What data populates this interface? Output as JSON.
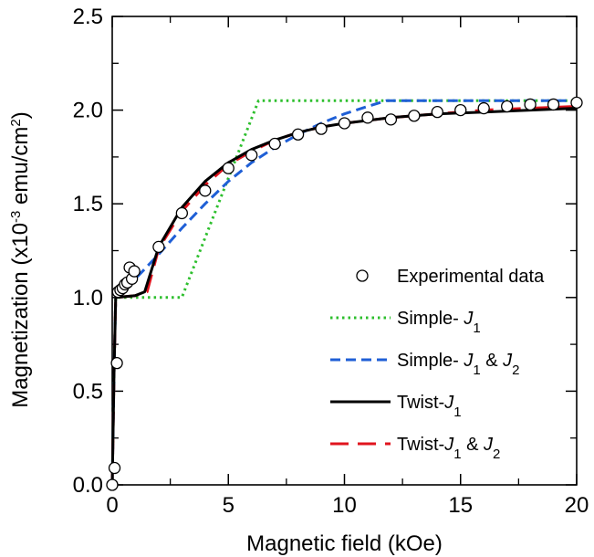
{
  "chart_data": {
    "type": "line",
    "xlabel": "Magnetic field (kOe)",
    "ylabel": {
      "prefix": "Magnetization (x10",
      "exp": "-3",
      "unit": " emu/cm",
      "unit_exp": "2",
      "suffix": ")"
    },
    "xlim": [
      0,
      20
    ],
    "ylim": [
      0,
      2.5
    ],
    "xticks": [
      "0",
      "5",
      "10",
      "15",
      "20"
    ],
    "yticks": [
      "0.0",
      "0.5",
      "1.0",
      "1.5",
      "2.0",
      "2.5"
    ],
    "grid": false,
    "legend_position": "bottom-right",
    "series": [
      {
        "name": "Experimental data",
        "legend": {
          "main": "Experimental data",
          "parts": []
        },
        "style": "markers",
        "color": "#000000",
        "x": [
          0.0,
          0.1,
          0.2,
          0.25,
          0.35,
          0.45,
          0.55,
          0.65,
          0.75,
          0.85,
          0.95,
          2.0,
          3.0,
          4.0,
          5.0,
          6.0,
          7.0,
          8.0,
          9.0,
          10.0,
          11.0,
          12.0,
          13.0,
          14.0,
          15.0,
          16.0,
          17.0,
          18.0,
          19.0,
          20.0
        ],
        "y": [
          0.0,
          0.09,
          0.65,
          1.03,
          1.04,
          1.05,
          1.07,
          1.08,
          1.16,
          1.1,
          1.14,
          1.27,
          1.45,
          1.57,
          1.69,
          1.76,
          1.82,
          1.87,
          1.9,
          1.93,
          1.96,
          1.95,
          1.97,
          1.99,
          2.0,
          2.01,
          2.02,
          2.03,
          2.03,
          2.04
        ]
      },
      {
        "name": "Simple-J1",
        "legend": {
          "main": "Simple- ",
          "parts": [
            {
              "text": "J",
              "sub": "1"
            }
          ]
        },
        "style": "dotted",
        "color": "#2dbf2d",
        "x": [
          0.0,
          0.08,
          0.15,
          3.0,
          6.3,
          20.0
        ],
        "y": [
          0.0,
          0.6,
          1.0,
          1.0,
          2.05,
          2.05
        ]
      },
      {
        "name": "Simple-J1 & J2",
        "legend": {
          "main": "Simple- ",
          "parts": [
            {
              "text": "J",
              "sub": "1"
            },
            {
              "text": " & "
            },
            {
              "text": "J",
              "sub": "2"
            }
          ]
        },
        "style": "dashed",
        "color": "#1f5fd6",
        "x": [
          0.0,
          0.08,
          0.15,
          1.0,
          2.0,
          3.0,
          4.0,
          5.0,
          6.0,
          7.0,
          8.0,
          9.0,
          10.0,
          11.0,
          11.8,
          20.0
        ],
        "y": [
          0.0,
          0.6,
          1.0,
          1.1,
          1.23,
          1.37,
          1.5,
          1.62,
          1.72,
          1.8,
          1.87,
          1.93,
          1.98,
          2.02,
          2.05,
          2.05
        ]
      },
      {
        "name": "Twist-J1",
        "legend": {
          "main": "Twist-",
          "parts": [
            {
              "text": "J",
              "sub": "1"
            }
          ]
        },
        "style": "solid",
        "color": "#000000",
        "x": [
          0.0,
          0.08,
          0.15,
          1.0,
          1.4,
          2.0,
          3.0,
          4.0,
          5.0,
          6.0,
          7.0,
          8.0,
          9.0,
          10.0,
          12.0,
          14.0,
          16.0,
          18.0,
          20.0
        ],
        "y": [
          0.0,
          0.6,
          1.0,
          1.01,
          1.03,
          1.27,
          1.48,
          1.62,
          1.72,
          1.79,
          1.84,
          1.88,
          1.91,
          1.93,
          1.96,
          1.98,
          1.99,
          2.0,
          2.01
        ]
      },
      {
        "name": "Twist-J1 & J2",
        "legend": {
          "main": "Twist-",
          "parts": [
            {
              "text": "J",
              "sub": "1"
            },
            {
              "text": " & "
            },
            {
              "text": "J",
              "sub": "2"
            }
          ]
        },
        "style": "longdash",
        "color": "#e0141e",
        "x": [
          0.0,
          0.08,
          0.15,
          1.0,
          1.5,
          2.0,
          3.0,
          4.0,
          5.0,
          6.0,
          7.0,
          8.0,
          9.0,
          10.0,
          12.0,
          14.0,
          16.0,
          18.0,
          20.0
        ],
        "y": [
          0.0,
          0.6,
          1.0,
          1.01,
          1.03,
          1.26,
          1.46,
          1.6,
          1.71,
          1.78,
          1.84,
          1.88,
          1.91,
          1.93,
          1.96,
          1.98,
          2.0,
          2.01,
          2.02
        ]
      }
    ]
  }
}
